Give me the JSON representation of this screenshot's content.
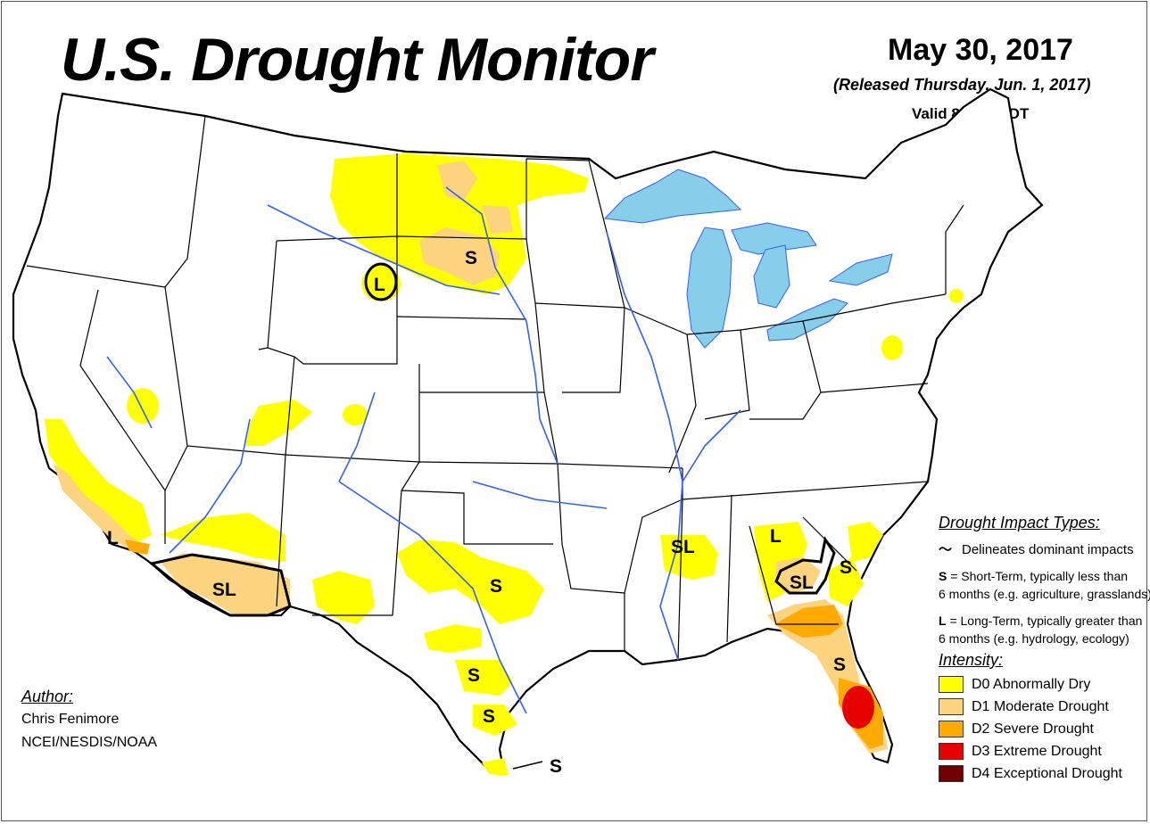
{
  "header": {
    "title": "U.S. Drought Monitor",
    "date": "May 30, 2017",
    "released": "(Released Thursday, Jun. 1, 2017)",
    "valid": "Valid 8 a.m. EDT"
  },
  "map_labels": {
    "montana_l": "L",
    "dakota_s": "S",
    "california_l": "L",
    "arizona_sl": "SL",
    "texas_north_s": "S",
    "texas_central_s": "S",
    "texas_south_s": "S",
    "texas_coast_s": "S",
    "mississippi_sl": "SL",
    "alabama_l": "L",
    "georgia_sl": "SL",
    "carolina_s": "S",
    "florida_s": "S"
  },
  "legend": {
    "impact_heading": "Drought Impact Types:",
    "delineates": "Delineates dominant impacts",
    "short_term": "= Short-Term, typically less than",
    "short_term_2": "6 months (e.g. agriculture, grasslands)",
    "long_term": "= Long-Term, typically greater than",
    "long_term_2": "6 months (e.g. hydrology, ecology)",
    "s_key": "S",
    "l_key": "L",
    "intensity_heading": "Intensity:",
    "levels": [
      {
        "label": "D0 Abnormally Dry",
        "color": "#ffff00"
      },
      {
        "label": "D1 Moderate Drought",
        "color": "#fcd37f"
      },
      {
        "label": "D2 Severe Drought",
        "color": "#ffaa00"
      },
      {
        "label": "D3 Extreme Drought",
        "color": "#e60000"
      },
      {
        "label": "D4 Exceptional Drought",
        "color": "#730000"
      }
    ]
  },
  "author": {
    "heading": "Author:",
    "name": "Chris Fenimore",
    "org": "NCEI/NESDIS/NOAA"
  },
  "colors": {
    "water": "#87ceeb",
    "river": "#3060ff",
    "d0": "#ffff00",
    "d1": "#fcd37f",
    "d2": "#ffaa00",
    "d3": "#e60000"
  }
}
